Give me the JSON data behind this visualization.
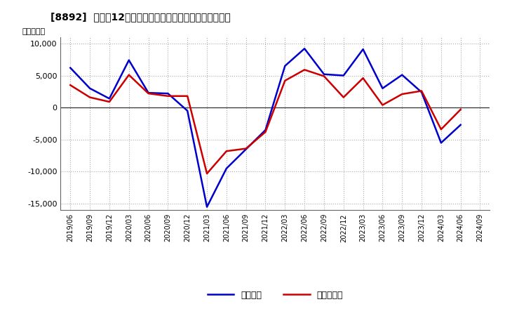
{
  "title": "[8892]  利益だ12か月移動合計の対前年同期増減額の推移",
  "ylabel": "（百万円）",
  "ylim": [
    -16000,
    11000
  ],
  "yticks": [
    -15000,
    -10000,
    -5000,
    0,
    5000,
    10000
  ],
  "ytick_labels": [
    "-15,000",
    "-10,000",
    "-5,000",
    "0",
    "5,000",
    "10,000"
  ],
  "x_labels": [
    "2019/06",
    "2019/09",
    "2019/12",
    "2020/03",
    "2020/06",
    "2020/09",
    "2020/12",
    "2021/03",
    "2021/06",
    "2021/09",
    "2021/12",
    "2022/03",
    "2022/06",
    "2022/09",
    "2022/12",
    "2023/03",
    "2023/06",
    "2023/09",
    "2023/12",
    "2024/03",
    "2024/06",
    "2024/09"
  ],
  "keijo_rieki": [
    6200,
    3000,
    1400,
    7400,
    2300,
    2200,
    -500,
    -15500,
    -9500,
    -6500,
    -3500,
    6500,
    9200,
    5200,
    5000,
    9100,
    3000,
    5100,
    2400,
    -5500,
    -2700,
    null
  ],
  "touki_junrieki": [
    3500,
    1600,
    900,
    5100,
    2200,
    1800,
    1800,
    -10300,
    -6800,
    -6400,
    -3800,
    4200,
    5900,
    4900,
    1600,
    4600,
    400,
    2100,
    2600,
    -3400,
    -300,
    null
  ],
  "keijo_color": "#0000cc",
  "touki_color": "#cc0000",
  "bg_color": "#ffffff",
  "grid_color": "#aaaaaa",
  "line_width": 1.8,
  "legend_labels": [
    "経常利益",
    "当期純利益"
  ]
}
